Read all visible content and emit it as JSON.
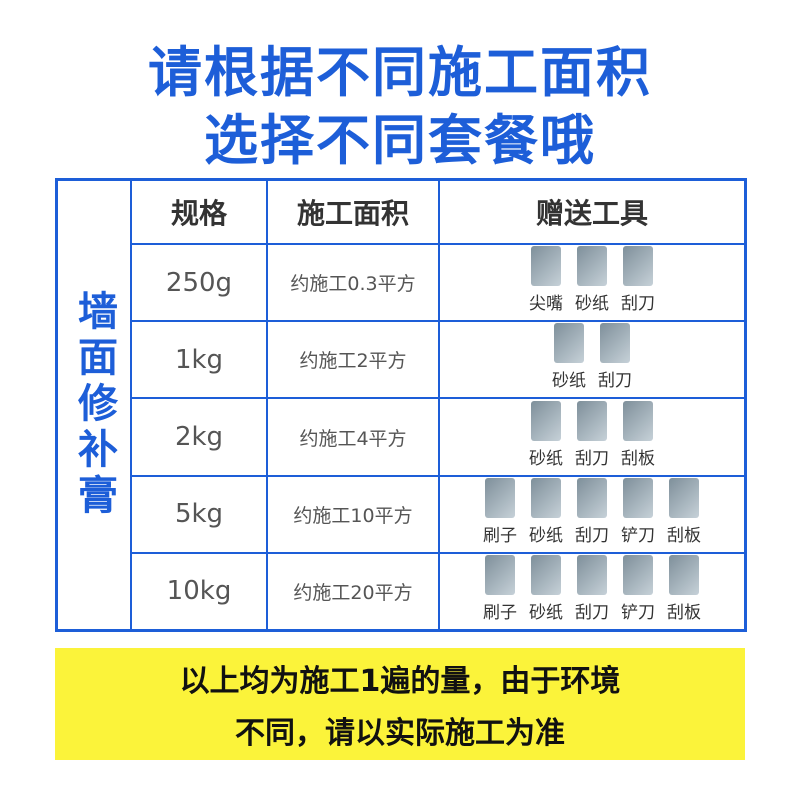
{
  "title": [
    "请根据不同施工面积",
    "选择不同套餐哦"
  ],
  "side_label": "墙面修补膏",
  "table": {
    "header": [
      "规格",
      "施工面积",
      "赠送工具"
    ],
    "rows": [
      {
        "spec": "250g",
        "area": "约施工0.3平方",
        "tools": [
          "尖嘴",
          "砂纸",
          "刮刀"
        ]
      },
      {
        "spec": "1kg",
        "area": "约施工2平方",
        "tools": [
          "砂纸",
          "刮刀"
        ]
      },
      {
        "spec": "2kg",
        "area": "约施工4平方",
        "tools": [
          "砂纸",
          "刮刀",
          "刮板"
        ]
      },
      {
        "spec": "5kg",
        "area": "约施工10平方",
        "tools": [
          "刷子",
          "砂纸",
          "刮刀",
          "铲刀",
          "刮板"
        ]
      },
      {
        "spec": "10kg",
        "area": "约施工20平方",
        "tools": [
          "刷子",
          "砂纸",
          "刮刀",
          "铲刀",
          "刮板"
        ]
      }
    ]
  },
  "note": [
    "以上均为施工1遍的量，由于环境",
    "不同，请以实际施工为准"
  ]
}
